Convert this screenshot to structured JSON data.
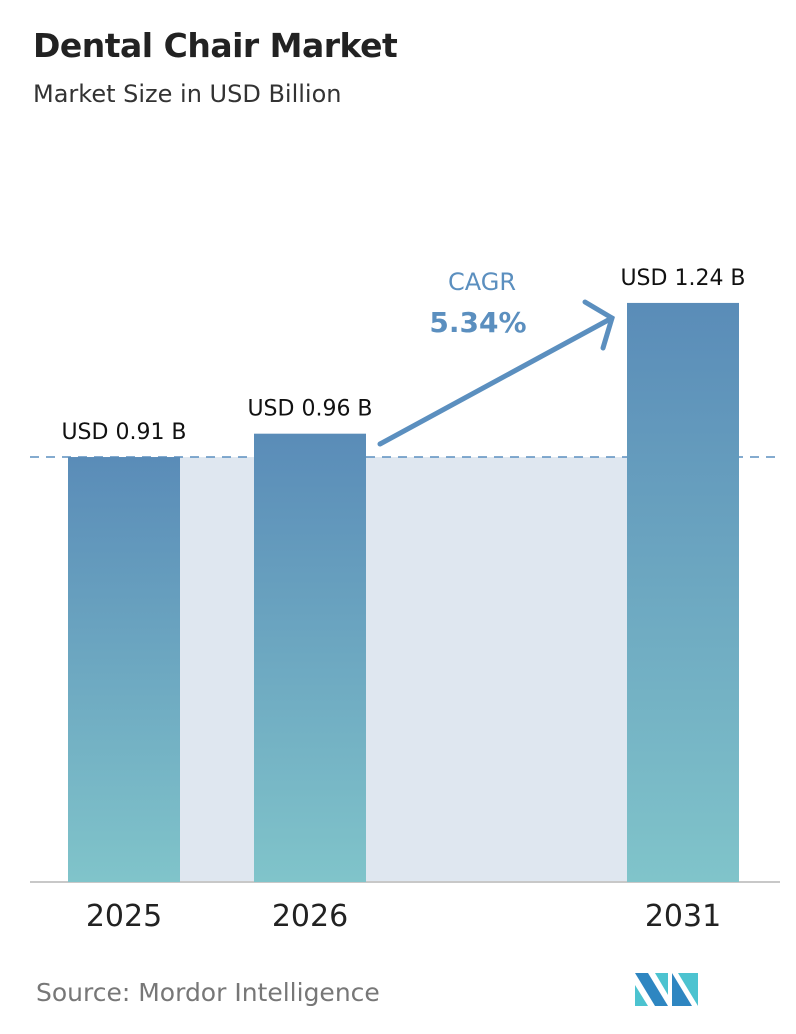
{
  "title": "Dental Chair Market",
  "subtitle": "Market Size in USD Billion",
  "source": "Source:  Mordor Intelligence",
  "logo_text": "MI",
  "colors": {
    "bar_top": "#5a8cb8",
    "bar_bottom": "#80c4ca",
    "band": "#dfe7f0",
    "accent": "#5b8fbf"
  },
  "chart_data": {
    "type": "bar",
    "categories": [
      "2025",
      "2026",
      "2031"
    ],
    "values": [
      0.91,
      0.96,
      1.24
    ],
    "data_labels": [
      "USD 0.91 B",
      "USD 0.96 B",
      "USD 1.24 B"
    ],
    "title": "Dental Chair Market",
    "subtitle": "Market Size in USD Billion",
    "annotation": {
      "label": "CAGR",
      "value": "5.34%"
    },
    "ylim": [
      0,
      1.89
    ],
    "grid": false,
    "reference_line": 0.91
  }
}
